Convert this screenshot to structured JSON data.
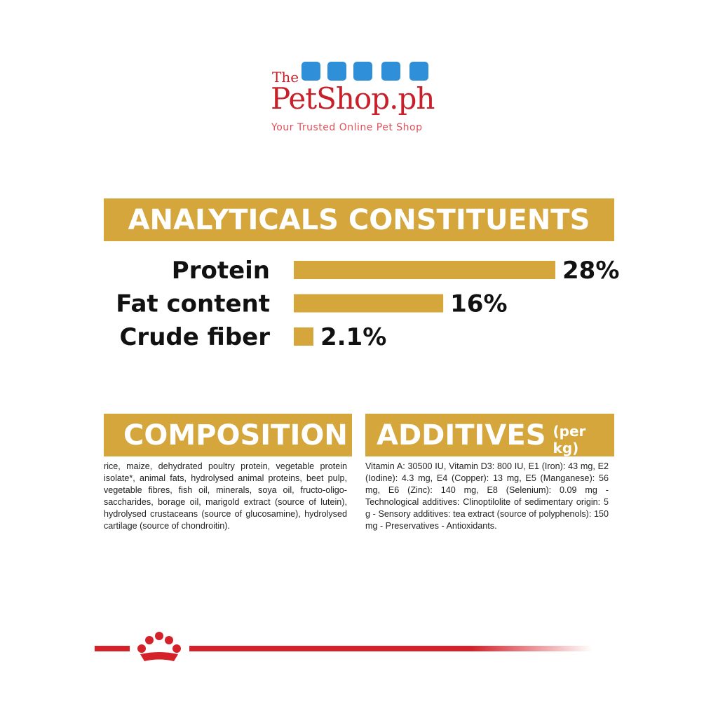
{
  "logo": {
    "the": "The",
    "name": "PetShop.ph",
    "tagline": "Your Trusted Online Pet Shop"
  },
  "chart_data": {
    "type": "bar",
    "title": "ANALYTICALS CONSTITUENTS",
    "categories": [
      "Protein",
      "Fat content",
      "Crude fiber"
    ],
    "values": [
      28,
      16,
      2.1
    ],
    "value_labels": [
      "28%",
      "16%",
      "2.1%"
    ],
    "color": "#d4a63c"
  },
  "composition": {
    "title": "COMPOSITION",
    "text": "rice, maize, dehydrated poultry protein, vegetable protein isolate*, animal fats, hydrolysed animal proteins, beet pulp, vegetable fibres, fish oil, minerals, soya oil, fructo-oligo-saccharides, borage oil, marigold extract (source of lutein), hydrolysed crustaceans (source of glucosamine), hydrolysed cartilage (source of chondroitin)."
  },
  "additives": {
    "title": "ADDITIVES",
    "unit": "(per kg)",
    "text": "Vitamin A: 30500 IU, Vitamin D3: 800 IU, E1 (Iron): 43 mg, E2 (Iodine): 4.3 mg, E4 (Copper): 13 mg, E5 (Manganese): 56 mg, E6 (Zinc): 140 mg, E8 (Selenium): 0.09 mg - Technological additives: Clinoptilolite of sedimentary origin: 5 g - Sensory additives: tea extract (source of polyphenols): 150 mg - Preservatives - Antioxidants."
  }
}
